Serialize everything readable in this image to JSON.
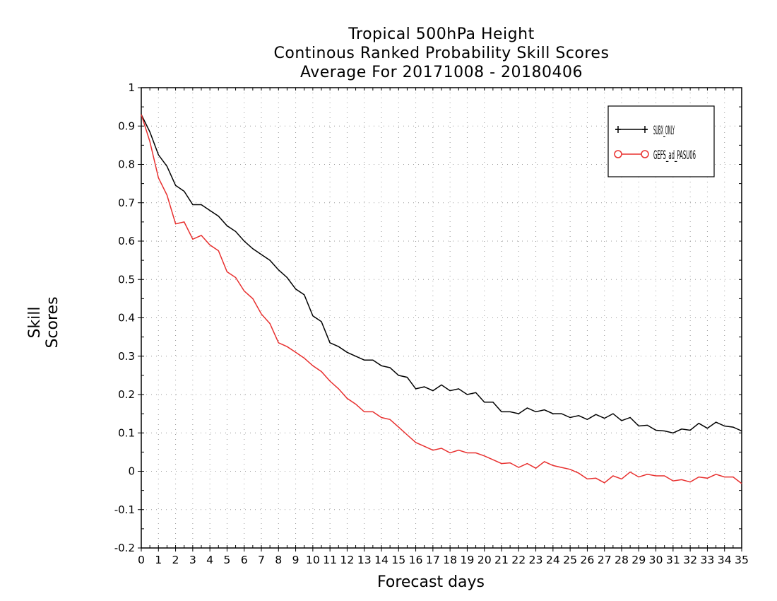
{
  "chart_data": {
    "type": "line",
    "title": [
      "Tropical 500hPa Height",
      "Continous Ranked Probability Skill Scores",
      "Average For 20171008 - 20180406"
    ],
    "xlabel": "Forecast days",
    "ylabel": "Skill Scores",
    "xlim": [
      0,
      35
    ],
    "ylim": [
      -0.2,
      1
    ],
    "x_ticks": [
      0,
      1,
      2,
      3,
      4,
      5,
      6,
      7,
      8,
      9,
      10,
      11,
      12,
      13,
      14,
      15,
      16,
      17,
      18,
      19,
      20,
      21,
      22,
      23,
      24,
      25,
      26,
      27,
      28,
      29,
      30,
      31,
      32,
      33,
      34,
      35
    ],
    "y_ticks": [
      "-0.2",
      "-0.1",
      "0",
      "0.1",
      "0.2",
      "0.3",
      "0.4",
      "0.5",
      "0.6",
      "0.7",
      "0.8",
      "0.9",
      "1"
    ],
    "grid": true,
    "legend_position": "top-right",
    "x": [
      0,
      0.5,
      1,
      1.5,
      2,
      2.5,
      3,
      3.5,
      4,
      4.5,
      5,
      5.5,
      6,
      6.5,
      7,
      7.5,
      8,
      8.5,
      9,
      9.5,
      10,
      10.5,
      11,
      11.5,
      12,
      12.5,
      13,
      13.5,
      14,
      14.5,
      15,
      15.5,
      16,
      16.5,
      17,
      17.5,
      18,
      18.5,
      19,
      19.5,
      20,
      20.5,
      21,
      21.5,
      22,
      22.5,
      23,
      23.5,
      24,
      24.5,
      25,
      25.5,
      26,
      26.5,
      27,
      27.5,
      28,
      28.5,
      29,
      29.5,
      30,
      30.5,
      31,
      31.5,
      32,
      32.5,
      33,
      33.5,
      34,
      34.5,
      35
    ],
    "series": [
      {
        "name": "SUBX_ONLY",
        "color": "#000000",
        "marker": "plus",
        "values": [
          0.93,
          0.885,
          0.825,
          0.795,
          0.745,
          0.73,
          0.695,
          0.695,
          0.68,
          0.665,
          0.64,
          0.625,
          0.6,
          0.58,
          0.565,
          0.55,
          0.525,
          0.505,
          0.475,
          0.46,
          0.405,
          0.39,
          0.335,
          0.325,
          0.31,
          0.3,
          0.29,
          0.29,
          0.275,
          0.27,
          0.25,
          0.245,
          0.215,
          0.22,
          0.21,
          0.225,
          0.21,
          0.215,
          0.2,
          0.205,
          0.18,
          0.18,
          0.155,
          0.155,
          0.15,
          0.165,
          0.155,
          0.16,
          0.15,
          0.15,
          0.14,
          0.145,
          0.135,
          0.148,
          0.138,
          0.15,
          0.132,
          0.14,
          0.118,
          0.12,
          0.107,
          0.105,
          0.1,
          0.11,
          0.107,
          0.125,
          0.112,
          0.128,
          0.118,
          0.115,
          0.105
        ]
      },
      {
        "name": "GEFS_ad_PASU06",
        "color": "#e8302f",
        "marker": "circle",
        "values": [
          0.93,
          0.86,
          0.765,
          0.72,
          0.645,
          0.65,
          0.605,
          0.615,
          0.59,
          0.575,
          0.52,
          0.505,
          0.47,
          0.45,
          0.41,
          0.385,
          0.335,
          0.325,
          0.31,
          0.295,
          0.275,
          0.26,
          0.235,
          0.215,
          0.19,
          0.175,
          0.155,
          0.155,
          0.14,
          0.135,
          0.115,
          0.095,
          0.075,
          0.065,
          0.055,
          0.06,
          0.048,
          0.055,
          0.048,
          0.048,
          0.04,
          0.03,
          0.02,
          0.022,
          0.01,
          0.02,
          0.008,
          0.025,
          0.015,
          0.01,
          0.005,
          -0.005,
          -0.02,
          -0.018,
          -0.03,
          -0.012,
          -0.02,
          -0.002,
          -0.015,
          -0.008,
          -0.012,
          -0.012,
          -0.025,
          -0.022,
          -0.028,
          -0.015,
          -0.018,
          -0.008,
          -0.015,
          -0.015,
          -0.032
        ]
      }
    ]
  }
}
